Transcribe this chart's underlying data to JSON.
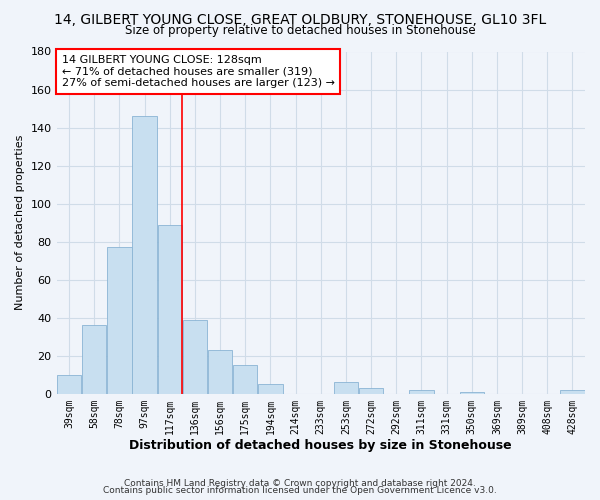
{
  "title": "14, GILBERT YOUNG CLOSE, GREAT OLDBURY, STONEHOUSE, GL10 3FL",
  "subtitle": "Size of property relative to detached houses in Stonehouse",
  "xlabel": "Distribution of detached houses by size in Stonehouse",
  "ylabel": "Number of detached properties",
  "bin_labels": [
    "39sqm",
    "58sqm",
    "78sqm",
    "97sqm",
    "117sqm",
    "136sqm",
    "156sqm",
    "175sqm",
    "194sqm",
    "214sqm",
    "233sqm",
    "253sqm",
    "272sqm",
    "292sqm",
    "311sqm",
    "331sqm",
    "350sqm",
    "369sqm",
    "389sqm",
    "408sqm",
    "428sqm"
  ],
  "bar_values": [
    10,
    36,
    77,
    146,
    89,
    39,
    23,
    15,
    5,
    0,
    0,
    6,
    3,
    0,
    2,
    0,
    1,
    0,
    0,
    0,
    2
  ],
  "bar_color": "#c8dff0",
  "bar_edge_color": "#8ab4d4",
  "vline_x": 5.0,
  "vline_color": "red",
  "annotation_title": "14 GILBERT YOUNG CLOSE: 128sqm",
  "annotation_line1": "← 71% of detached houses are smaller (319)",
  "annotation_line2": "27% of semi-detached houses are larger (123) →",
  "annotation_box_color": "#ffffff",
  "annotation_box_edgecolor": "red",
  "ylim": [
    0,
    180
  ],
  "yticks": [
    0,
    20,
    40,
    60,
    80,
    100,
    120,
    140,
    160,
    180
  ],
  "footer1": "Contains HM Land Registry data © Crown copyright and database right 2024.",
  "footer2": "Contains public sector information licensed under the Open Government Licence v3.0.",
  "bg_color": "#f0f4fa",
  "grid_color": "#d0dce8"
}
